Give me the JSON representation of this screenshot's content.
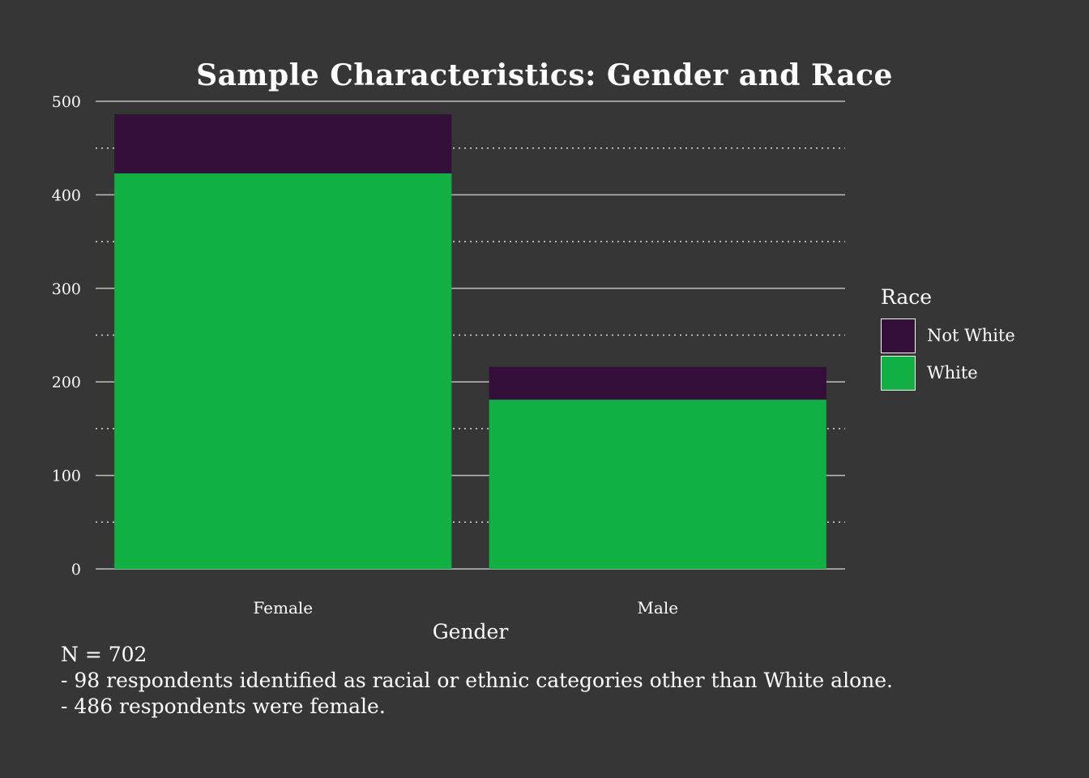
{
  "chart_data": {
    "type": "bar",
    "stacked": true,
    "title": "Sample Characteristics: Gender and Race",
    "xlabel": "Gender",
    "ylabel": "",
    "categories": [
      "Female",
      "Male"
    ],
    "series": [
      {
        "name": "White",
        "values": [
          423,
          181
        ],
        "color": "#10B042"
      },
      {
        "name": "Not White",
        "values": [
          63,
          35
        ],
        "color": "#330F3A"
      }
    ],
    "ylim": [
      0,
      500
    ],
    "yticks": [
      0,
      100,
      200,
      300,
      400,
      500
    ],
    "grid": true,
    "legend": {
      "title": "Race",
      "position": "right",
      "items": [
        "Not White",
        "White"
      ]
    },
    "caption": [
      "N = 702",
      "- 98 respondents identified as racial or ethnic categories other than White alone.",
      "- 486 respondents were female."
    ]
  }
}
